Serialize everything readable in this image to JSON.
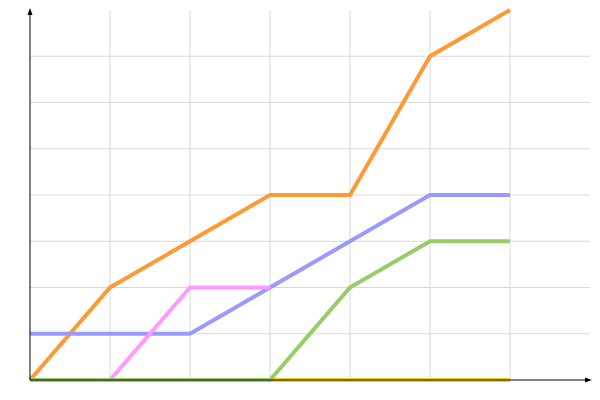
{
  "chart_data": {
    "type": "line",
    "title": "",
    "xlabel": "",
    "ylabel": "",
    "xlim": [
      0,
      7
    ],
    "ylim": [
      0,
      8
    ],
    "grid": true,
    "legend": "none",
    "series": [
      {
        "color": "#ff9933",
        "x": [
          0,
          1,
          2,
          3,
          4,
          5,
          6
        ],
        "y": [
          0,
          2,
          3,
          4,
          4,
          7,
          8
        ]
      },
      {
        "color": "#9999ff",
        "x": [
          0,
          1,
          2,
          3,
          4,
          5,
          6
        ],
        "y": [
          1,
          1,
          1,
          2,
          3,
          4,
          4
        ]
      },
      {
        "color": "#ff99ff",
        "x": [
          1,
          2,
          3
        ],
        "y": [
          0,
          2,
          2
        ]
      },
      {
        "color": "#ffcc00",
        "x": [
          3,
          4,
          5,
          6
        ],
        "y": [
          0,
          0,
          0,
          0
        ]
      },
      {
        "color": "#99cc66",
        "x": [
          0,
          1,
          2,
          3,
          4,
          5,
          6
        ],
        "y": [
          0,
          0,
          0,
          0,
          2,
          3,
          3
        ]
      }
    ]
  }
}
